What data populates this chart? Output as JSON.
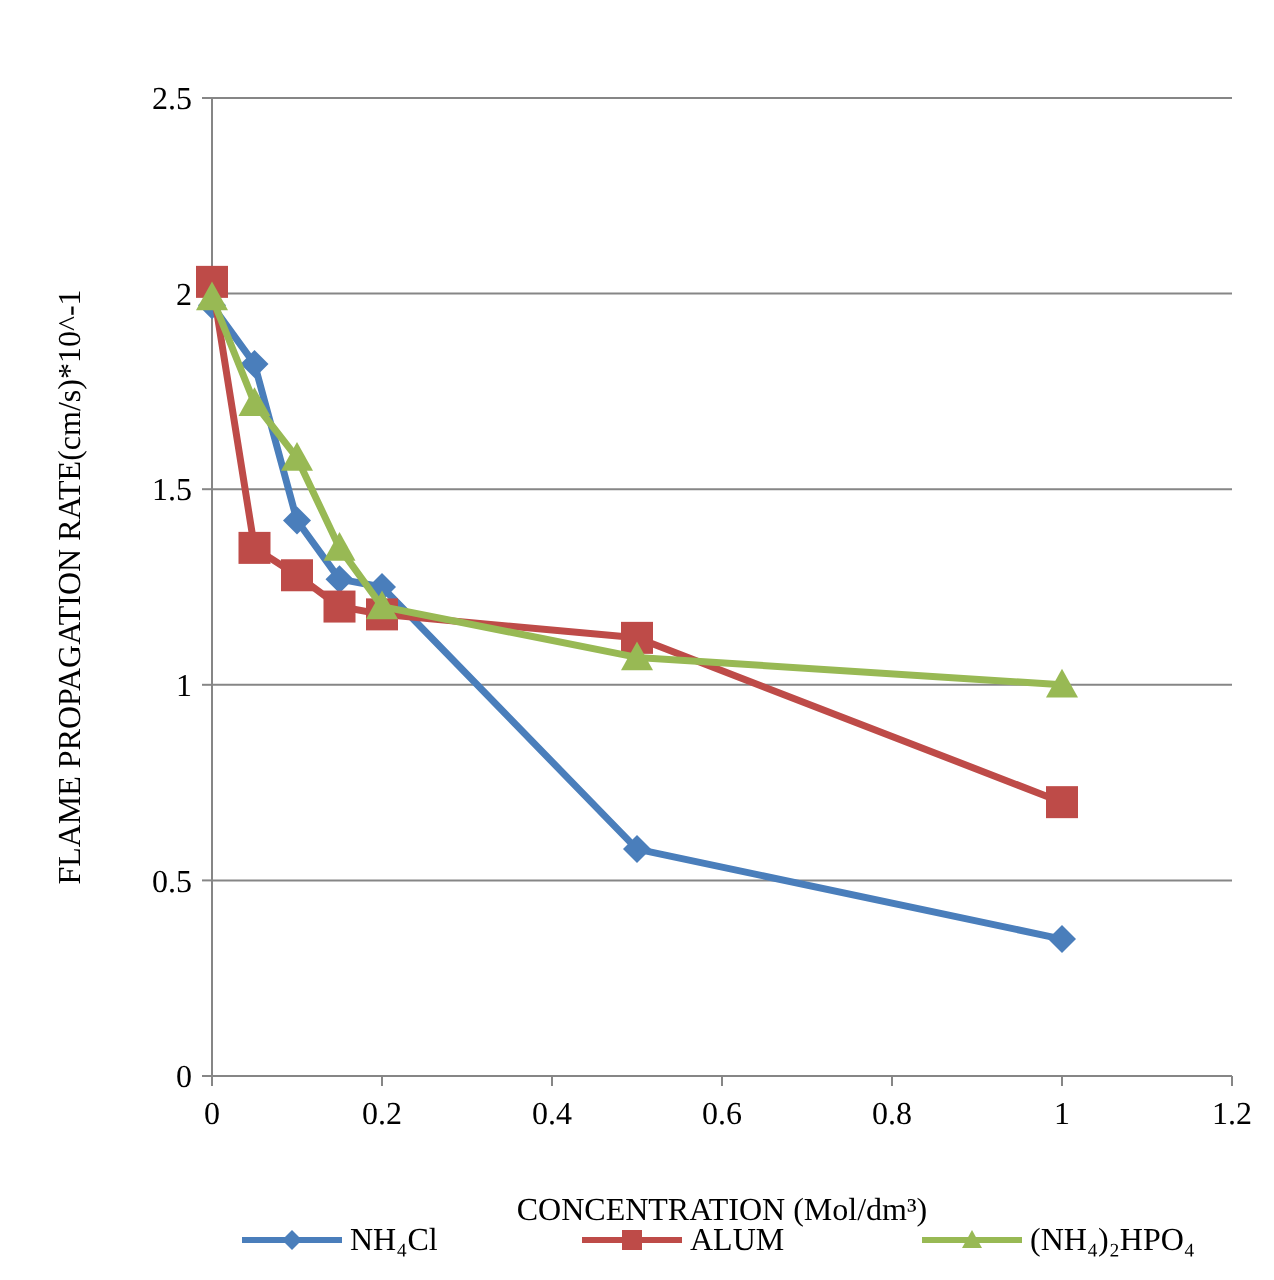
{
  "chart_data": {
    "type": "line",
    "xlabel": "CONCENTRATION (Mol/dm³)",
    "ylabel": "FLAME PROPAGATION RATE(cm/s)*10^-1",
    "x": [
      0,
      0.05,
      0.1,
      0.15,
      0.2,
      0.5,
      1
    ],
    "series": [
      {
        "name": "NH₄Cl",
        "color": "#4a7ebb",
        "marker": "diamond",
        "values": [
          1.97,
          1.82,
          1.42,
          1.27,
          1.25,
          0.58,
          0.35
        ]
      },
      {
        "name": "ALUM",
        "color": "#be4b48",
        "marker": "square",
        "values": [
          2.03,
          1.35,
          1.28,
          1.2,
          1.18,
          1.12,
          0.7
        ]
      },
      {
        "name": "(NH₄)₂HPO₄",
        "color": "#98b954",
        "marker": "triangle",
        "values": [
          1.99,
          1.72,
          1.58,
          1.35,
          1.2,
          1.07,
          1.0
        ]
      }
    ],
    "xlim": [
      0,
      1.2
    ],
    "xticks": [
      0,
      0.2,
      0.4,
      0.6,
      0.8,
      1,
      1.2
    ],
    "ylim": [
      0,
      2.5
    ],
    "yticks": [
      0,
      0.5,
      1,
      1.5,
      2,
      2.5
    ],
    "grid": "y",
    "legend": "bottom",
    "line_style": "solid"
  }
}
